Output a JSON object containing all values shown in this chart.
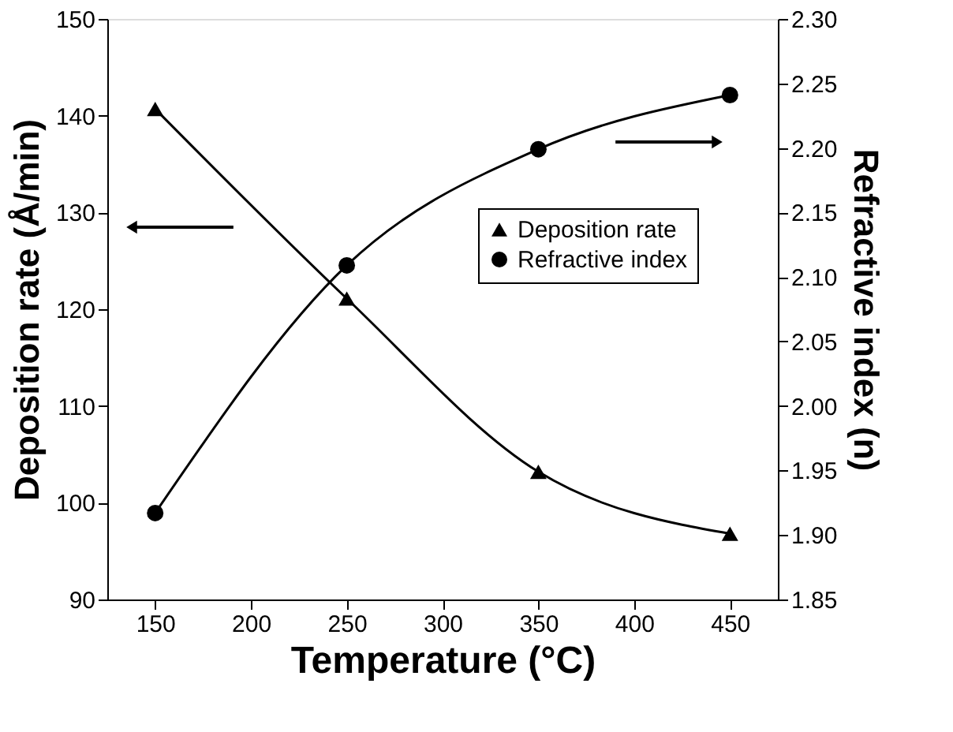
{
  "chart_data": {
    "type": "line",
    "xlabel": "Temperature (°C)",
    "ylabel": "Deposition rate (Å/min)",
    "y2label": "Refractive index (n)",
    "x": [
      150,
      250,
      350,
      450
    ],
    "series": [
      {
        "name": "Deposition rate",
        "color": "#000000",
        "marker": "triangle",
        "values": [
          140.7,
          121.1,
          103.2,
          96.8
        ]
      },
      {
        "name": "Refractive index",
        "color": "#000000",
        "marker": "circle",
        "axis": "y2",
        "values": [
          1.917,
          2.109,
          2.199,
          2.241
        ]
      }
    ],
    "xlim": [
      125,
      475
    ],
    "xticks": [
      150,
      200,
      250,
      300,
      350,
      400,
      450
    ],
    "ylim": [
      90,
      150
    ],
    "yticks": [
      90,
      100,
      110,
      120,
      130,
      140,
      150
    ],
    "y2lim": [
      1.85,
      2.3
    ],
    "y2ticks": [
      {
        "value": 1.85,
        "label": "1.85"
      },
      {
        "value": 1.9,
        "label": "1.90"
      },
      {
        "value": 1.95,
        "label": "1.95"
      },
      {
        "value": 2.0,
        "label": "2.00"
      },
      {
        "value": 2.05,
        "label": "2.05"
      },
      {
        "value": 2.1,
        "label": "2.10"
      },
      {
        "value": 2.15,
        "label": "2.15"
      },
      {
        "value": 2.2,
        "label": "2.20"
      },
      {
        "value": 2.25,
        "label": "2.25"
      },
      {
        "value": 2.3,
        "label": "2.30"
      }
    ],
    "legend": "right",
    "grid": false,
    "line_style": "solid"
  }
}
